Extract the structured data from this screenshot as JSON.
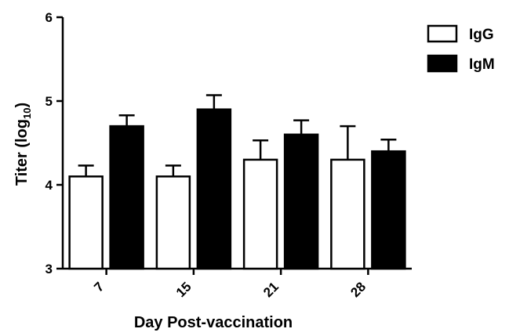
{
  "chart_data": {
    "type": "bar",
    "categories": [
      "7",
      "15",
      "21",
      "28"
    ],
    "series": [
      {
        "name": "IgG",
        "values": [
          4.1,
          4.1,
          4.3,
          4.3
        ],
        "errors": [
          0.13,
          0.13,
          0.23,
          0.4
        ],
        "color": "#ffffff"
      },
      {
        "name": "IgM",
        "values": [
          4.7,
          4.9,
          4.6,
          4.4
        ],
        "errors": [
          0.13,
          0.17,
          0.17,
          0.14
        ],
        "color": "#000000"
      }
    ],
    "title": "",
    "xlabel": "Day Post-vaccination",
    "ylabel_main": "Titer (log",
    "ylabel_sub": "10",
    "ylabel_close": ")",
    "ylim": [
      3,
      6
    ],
    "yticks": [
      3,
      4,
      5,
      6
    ],
    "grid": false,
    "legend_position": "top-right"
  }
}
